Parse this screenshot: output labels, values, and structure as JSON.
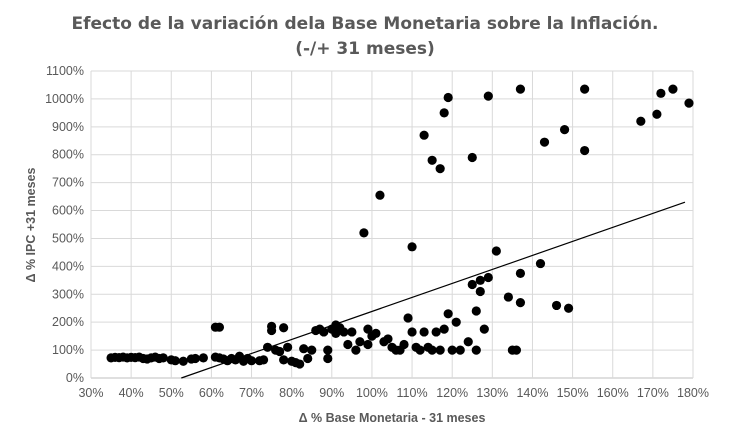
{
  "chart_data": {
    "type": "scatter",
    "title_lines": [
      "Efecto de la variación dela Base Monetaria sobre la Inflación.",
      "(-/+ 31 meses)"
    ],
    "xlabel": "Δ % Base Monetaria - 31 meses",
    "ylabel": "Δ % IPC +31 meses",
    "xlim": [
      30,
      180
    ],
    "ylim": [
      0,
      1100
    ],
    "x_ticks": [
      "30%",
      "40%",
      "50%",
      "60%",
      "70%",
      "80%",
      "90%",
      "100%",
      "110%",
      "120%",
      "130%",
      "140%",
      "150%",
      "160%",
      "170%",
      "180%"
    ],
    "y_ticks": [
      "0%",
      "100%",
      "200%",
      "300%",
      "400%",
      "500%",
      "600%",
      "700%",
      "800%",
      "900%",
      "1000%",
      "1100%"
    ],
    "grid": true,
    "trendline": {
      "type": "linear",
      "from": [
        52.5,
        0
      ],
      "to": [
        178,
        630
      ]
    },
    "marker_color": "#000000",
    "points": [
      [
        35,
        72
      ],
      [
        36,
        74
      ],
      [
        37,
        73
      ],
      [
        38,
        75
      ],
      [
        39,
        72
      ],
      [
        40,
        74
      ],
      [
        41,
        73
      ],
      [
        42,
        75
      ],
      [
        43,
        70
      ],
      [
        44,
        68
      ],
      [
        45,
        72
      ],
      [
        46,
        75
      ],
      [
        47,
        70
      ],
      [
        48,
        72
      ],
      [
        50,
        65
      ],
      [
        51,
        62
      ],
      [
        53,
        60
      ],
      [
        55,
        68
      ],
      [
        56,
        70
      ],
      [
        58,
        72
      ],
      [
        61,
        182
      ],
      [
        62,
        182
      ],
      [
        61,
        75
      ],
      [
        62,
        72
      ],
      [
        63,
        68
      ],
      [
        64,
        62
      ],
      [
        65,
        70
      ],
      [
        66,
        65
      ],
      [
        67,
        78
      ],
      [
        68,
        60
      ],
      [
        69,
        70
      ],
      [
        70,
        62
      ],
      [
        72,
        62
      ],
      [
        73,
        65
      ],
      [
        74,
        110
      ],
      [
        75,
        170
      ],
      [
        75,
        185
      ],
      [
        76,
        100
      ],
      [
        77,
        95
      ],
      [
        78,
        180
      ],
      [
        78,
        65
      ],
      [
        79,
        110
      ],
      [
        80,
        60
      ],
      [
        81,
        55
      ],
      [
        82,
        50
      ],
      [
        83,
        105
      ],
      [
        84,
        70
      ],
      [
        85,
        100
      ],
      [
        86,
        170
      ],
      [
        87,
        175
      ],
      [
        88,
        165
      ],
      [
        89,
        100
      ],
      [
        89,
        70
      ],
      [
        90,
        175
      ],
      [
        91,
        160
      ],
      [
        91,
        190
      ],
      [
        92,
        180
      ],
      [
        93,
        165
      ],
      [
        94,
        120
      ],
      [
        95,
        165
      ],
      [
        96,
        100
      ],
      [
        97,
        130
      ],
      [
        98,
        520
      ],
      [
        99,
        120
      ],
      [
        99,
        175
      ],
      [
        100,
        150
      ],
      [
        101,
        160
      ],
      [
        102,
        655
      ],
      [
        103,
        130
      ],
      [
        104,
        140
      ],
      [
        105,
        110
      ],
      [
        106,
        100
      ],
      [
        107,
        100
      ],
      [
        108,
        120
      ],
      [
        109,
        215
      ],
      [
        110,
        165
      ],
      [
        110,
        470
      ],
      [
        111,
        110
      ],
      [
        112,
        100
      ],
      [
        113,
        870
      ],
      [
        113,
        165
      ],
      [
        114,
        110
      ],
      [
        115,
        100
      ],
      [
        115,
        780
      ],
      [
        116,
        165
      ],
      [
        117,
        100
      ],
      [
        117,
        750
      ],
      [
        118,
        950
      ],
      [
        118,
        175
      ],
      [
        119,
        1005
      ],
      [
        119,
        230
      ],
      [
        120,
        100
      ],
      [
        121,
        200
      ],
      [
        122,
        100
      ],
      [
        124,
        130
      ],
      [
        125,
        790
      ],
      [
        125,
        335
      ],
      [
        126,
        100
      ],
      [
        126,
        240
      ],
      [
        127,
        350
      ],
      [
        127,
        310
      ],
      [
        128,
        175
      ],
      [
        129,
        1010
      ],
      [
        129,
        360
      ],
      [
        131,
        455
      ],
      [
        134,
        290
      ],
      [
        135,
        100
      ],
      [
        136,
        100
      ],
      [
        137,
        375
      ],
      [
        137,
        1035
      ],
      [
        137,
        270
      ],
      [
        142,
        410
      ],
      [
        143,
        845
      ],
      [
        146,
        260
      ],
      [
        148,
        890
      ],
      [
        149,
        250
      ],
      [
        153,
        1035
      ],
      [
        153,
        815
      ],
      [
        167,
        920
      ],
      [
        171,
        945
      ],
      [
        172,
        1020
      ],
      [
        175,
        1035
      ],
      [
        179,
        985
      ]
    ]
  }
}
